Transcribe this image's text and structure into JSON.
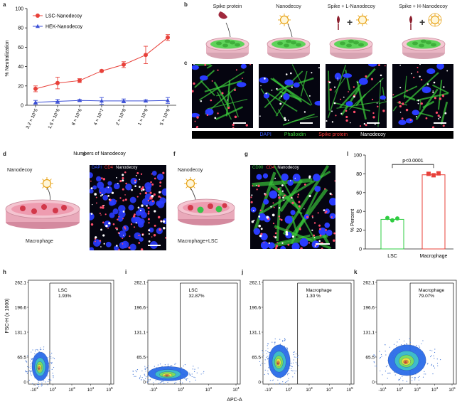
{
  "panel_labels": {
    "a": "a",
    "b": "b",
    "c": "c",
    "d": "d",
    "e": "e",
    "f": "f",
    "g": "g",
    "h": "h",
    "i": "i",
    "j": "j",
    "k": "k",
    "l": "l"
  },
  "chart_data": [
    {
      "type": "line",
      "id": "a",
      "ylabel": "% Neutralization",
      "xlabel": "Numbers of Nanodecoy",
      "categories": [
        "3.2 × 10^5",
        "1.6 × 10^6",
        "8 × 10^6",
        "4 × 10^7",
        "2 × 10^8",
        "1 × 10^9",
        "5 × 10^9"
      ],
      "ylim": [
        0,
        100
      ],
      "yticks": [
        "0",
        "20",
        "40",
        "60",
        "80",
        "100"
      ],
      "legend_position": "top-left",
      "series": [
        {
          "name": "LSC-Nanodecoy",
          "color": "#e8413a",
          "values": [
            17,
            23,
            25.5,
            35.5,
            42,
            52,
            70
          ],
          "errors": [
            3,
            6,
            2,
            1,
            3,
            9,
            3
          ]
        },
        {
          "name": "HEK-Nanodecoy",
          "color": "#3b4fd6",
          "values": [
            3,
            4,
            5,
            4.5,
            4.5,
            4.5,
            5
          ],
          "errors": [
            2,
            2,
            1,
            3.5,
            2,
            1,
            3
          ]
        }
      ]
    },
    {
      "type": "bar",
      "id": "l",
      "ylabel": "% Percent",
      "categories": [
        "LSC",
        "Macrophage"
      ],
      "values": [
        31.5,
        79
      ],
      "points": [
        [
          33,
          30.5,
          32.5
        ],
        [
          80,
          78.5,
          80.5
        ]
      ],
      "colors": [
        "#2ecc40",
        "#e8413a"
      ],
      "ylim": [
        0,
        100
      ],
      "yticks": [
        "0",
        "20",
        "40",
        "60",
        "80",
        "100"
      ],
      "annotation": "p<0.0001"
    },
    {
      "type": "scatter",
      "id": "h",
      "ylabel": "FSC-H (x 1000)",
      "xlabel": "APC-A",
      "gate_label": "LSC",
      "gate_value": "1.93%",
      "yticks": [
        "262.1",
        "196.6",
        "131.1",
        "65.5",
        "0"
      ],
      "xticks": [
        "-10^1",
        "10^2",
        "10^3",
        "10^4",
        "10^5"
      ]
    },
    {
      "type": "scatter",
      "id": "i",
      "gate_label": "LSC",
      "gate_value": "32.87%",
      "yticks": [
        "262.1",
        "196.6",
        "131.1",
        "65.5",
        "0"
      ],
      "xticks": [
        "-10^1",
        "10^2",
        "10^3",
        "10^4"
      ]
    },
    {
      "type": "scatter",
      "id": "j",
      "gate_label": "Macrophage",
      "gate_value": "1.30 %",
      "yticks": [
        "262.1",
        "196.6",
        "131.1",
        "65.5",
        "0"
      ],
      "xticks": [
        "-10^1",
        "10^2",
        "10^3",
        "10^4",
        "10^5"
      ]
    },
    {
      "type": "scatter",
      "id": "k",
      "gate_label": "Macrophage",
      "gate_value": "79.07%",
      "yticks": [
        "262.1",
        "196.6",
        "131.1",
        "65.5",
        "0"
      ],
      "xticks": [
        "-10^1",
        "10^2",
        "10^3",
        "10^4",
        "10^5"
      ]
    }
  ],
  "panel_b": {
    "titles": [
      "Spike protein",
      "Nanodecoy",
      "Spike + L-Nanodecoy",
      "Spike + H-Nanodecoy"
    ]
  },
  "panel_c": {
    "legend": {
      "dapi": "DAPI",
      "phalloidin": "Phalloidin",
      "spike": "Spike protein",
      "nanodecoy": "Nanodecoy"
    }
  },
  "panel_d": {
    "top": "Nanodecoy",
    "bottom": "Macrophage"
  },
  "panel_e": {
    "dapi": "DAPI",
    "cd4": "CD4",
    "nanodecoy": "Nanodecoy"
  },
  "panel_f": {
    "top": "Nanodecoy",
    "bottom": "Macrophage+LSC"
  },
  "panel_g": {
    "cd90": "CD90",
    "cd4": "CD4",
    "nanodecoy": "Nanodecoy"
  },
  "colors": {
    "lsc_red": "#e8413a",
    "hek_blue": "#3b4fd6",
    "dish_green": "#5fd35a",
    "dish_pink": "#f2b8c6",
    "dapi": "#2a3cff",
    "phalloidin": "#3ccf3c",
    "spike": "#ff3b3b"
  }
}
